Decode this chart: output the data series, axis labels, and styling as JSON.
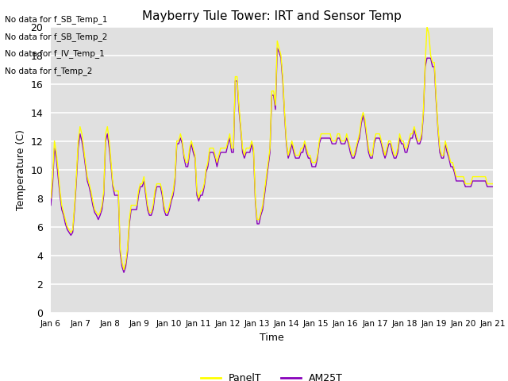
{
  "title": "Mayberry Tule Tower: IRT and Sensor Temp",
  "xlabel": "Time",
  "ylabel": "Temperature (C)",
  "ylim": [
    0,
    20
  ],
  "yticks": [
    0,
    2,
    4,
    6,
    8,
    10,
    12,
    14,
    16,
    18,
    20
  ],
  "panel_color": "#ffff00",
  "am25t_color": "#8800bb",
  "bg_color": "#e0e0e0",
  "legend_entries": [
    "PanelT",
    "AM25T"
  ],
  "no_data_messages": [
    "No data for f_SB_Temp_1",
    "No data for f_SB_Temp_2",
    "No data for f_IV_Temp_1",
    "No data for f_Temp_2"
  ],
  "x_tick_labels": [
    "Jan 6",
    "Jan 7",
    "Jan 8",
    "Jan 9",
    "Jan 10",
    "Jan 11",
    "Jan 12",
    "Jan 13",
    "Jan 14",
    "Jan 15",
    "Jan 16",
    "Jan 17",
    "Jan 18",
    "Jan 19",
    "Jan 20",
    "Jan 21"
  ],
  "panel_t": [
    8.0,
    9.5,
    12.0,
    11.2,
    10.0,
    8.5,
    7.5,
    7.0,
    6.5,
    6.0,
    5.8,
    5.6,
    5.8,
    7.5,
    9.5,
    12.0,
    13.0,
    12.5,
    11.5,
    10.5,
    9.5,
    9.0,
    8.5,
    7.8,
    7.2,
    7.0,
    6.8,
    7.0,
    7.5,
    8.5,
    12.5,
    13.0,
    12.0,
    10.5,
    9.0,
    8.5,
    8.5,
    8.5,
    4.5,
    3.5,
    3.0,
    3.5,
    4.5,
    6.5,
    7.5,
    7.5,
    7.5,
    7.5,
    8.5,
    9.0,
    9.0,
    9.5,
    8.5,
    7.5,
    7.0,
    7.0,
    7.5,
    8.5,
    9.0,
    9.0,
    9.0,
    8.5,
    7.5,
    7.0,
    7.0,
    7.5,
    8.0,
    8.5,
    9.5,
    12.0,
    12.0,
    12.5,
    12.0,
    11.0,
    10.5,
    10.5,
    11.5,
    12.0,
    11.5,
    11.0,
    8.5,
    8.0,
    8.5,
    8.5,
    9.0,
    10.0,
    10.5,
    11.5,
    11.5,
    11.5,
    11.0,
    10.5,
    11.0,
    11.5,
    11.5,
    11.5,
    11.5,
    12.0,
    12.5,
    11.5,
    11.5,
    16.5,
    16.5,
    14.5,
    13.0,
    11.5,
    11.0,
    11.5,
    11.5,
    11.5,
    12.0,
    11.5,
    8.0,
    6.5,
    6.5,
    7.0,
    7.5,
    8.5,
    9.5,
    10.5,
    11.5,
    15.5,
    15.5,
    14.5,
    19.0,
    18.5,
    18.0,
    16.5,
    14.0,
    12.0,
    11.0,
    11.5,
    12.0,
    11.5,
    11.0,
    11.0,
    11.0,
    11.5,
    11.5,
    12.0,
    11.5,
    11.0,
    11.0,
    10.5,
    10.5,
    10.5,
    11.0,
    12.0,
    12.5,
    12.5,
    12.5,
    12.5,
    12.5,
    12.5,
    12.0,
    12.0,
    12.0,
    12.5,
    12.5,
    12.0,
    12.0,
    12.0,
    12.5,
    12.0,
    11.5,
    11.0,
    11.0,
    11.5,
    12.0,
    12.5,
    13.5,
    14.0,
    13.5,
    12.5,
    11.5,
    11.0,
    11.0,
    12.0,
    12.5,
    12.5,
    12.5,
    12.0,
    11.5,
    11.0,
    11.5,
    12.0,
    12.0,
    11.5,
    11.0,
    11.0,
    11.5,
    12.5,
    12.0,
    12.0,
    11.5,
    11.5,
    12.0,
    12.5,
    12.5,
    13.0,
    12.5,
    12.0,
    12.0,
    12.5,
    14.0,
    17.5,
    20.0,
    19.5,
    18.0,
    17.5,
    17.5,
    15.0,
    13.0,
    11.5,
    11.0,
    11.0,
    12.0,
    11.5,
    11.0,
    10.5,
    10.5,
    10.0,
    9.5,
    9.5,
    9.5,
    9.5,
    9.5,
    9.0,
    9.0,
    9.0,
    9.0,
    9.5,
    9.5,
    9.5,
    9.5,
    9.5,
    9.5,
    9.5,
    9.5,
    9.0,
    9.0,
    9.0,
    9.0
  ],
  "am25t": [
    7.5,
    9.0,
    11.5,
    10.8,
    9.5,
    8.2,
    7.2,
    6.8,
    6.2,
    5.8,
    5.6,
    5.4,
    5.6,
    7.2,
    9.2,
    11.5,
    12.5,
    12.0,
    11.2,
    10.2,
    9.2,
    8.8,
    8.2,
    7.5,
    7.0,
    6.8,
    6.5,
    6.8,
    7.2,
    8.2,
    12.0,
    12.5,
    11.5,
    10.2,
    8.8,
    8.2,
    8.2,
    8.2,
    4.2,
    3.2,
    2.8,
    3.2,
    4.2,
    6.2,
    7.2,
    7.2,
    7.2,
    7.2,
    8.2,
    8.8,
    8.8,
    9.2,
    8.2,
    7.2,
    6.8,
    6.8,
    7.2,
    8.2,
    8.8,
    8.8,
    8.8,
    8.2,
    7.2,
    6.8,
    6.8,
    7.2,
    7.8,
    8.2,
    9.2,
    11.8,
    11.8,
    12.2,
    11.8,
    10.8,
    10.2,
    10.2,
    11.2,
    11.8,
    11.2,
    10.8,
    8.2,
    7.8,
    8.2,
    8.2,
    8.8,
    9.8,
    10.2,
    11.2,
    11.2,
    11.2,
    10.8,
    10.2,
    10.8,
    11.2,
    11.2,
    11.2,
    11.2,
    11.8,
    12.2,
    11.2,
    11.2,
    16.2,
    16.2,
    14.2,
    12.8,
    11.2,
    10.8,
    11.2,
    11.2,
    11.2,
    11.8,
    11.2,
    7.8,
    6.2,
    6.2,
    6.8,
    7.2,
    8.2,
    9.2,
    10.2,
    11.2,
    15.2,
    15.2,
    14.2,
    18.5,
    18.2,
    17.8,
    16.2,
    13.8,
    11.8,
    10.8,
    11.2,
    11.8,
    11.2,
    10.8,
    10.8,
    10.8,
    11.2,
    11.2,
    11.8,
    11.2,
    10.8,
    10.8,
    10.2,
    10.2,
    10.2,
    10.8,
    11.8,
    12.2,
    12.2,
    12.2,
    12.2,
    12.2,
    12.2,
    11.8,
    11.8,
    11.8,
    12.2,
    12.2,
    11.8,
    11.8,
    11.8,
    12.2,
    11.8,
    11.2,
    10.8,
    10.8,
    11.2,
    11.8,
    12.2,
    13.2,
    13.8,
    13.2,
    12.2,
    11.2,
    10.8,
    10.8,
    11.8,
    12.2,
    12.2,
    12.2,
    11.8,
    11.2,
    10.8,
    11.2,
    11.8,
    11.8,
    11.2,
    10.8,
    10.8,
    11.2,
    12.2,
    11.8,
    11.8,
    11.2,
    11.2,
    11.8,
    12.2,
    12.2,
    12.8,
    12.2,
    11.8,
    11.8,
    12.2,
    13.8,
    17.2,
    17.8,
    17.8,
    17.8,
    17.2,
    17.2,
    14.8,
    12.8,
    11.2,
    10.8,
    10.8,
    11.8,
    11.2,
    10.8,
    10.2,
    10.2,
    9.8,
    9.2,
    9.2,
    9.2,
    9.2,
    9.2,
    8.8,
    8.8,
    8.8,
    8.8,
    9.2,
    9.2,
    9.2,
    9.2,
    9.2,
    9.2,
    9.2,
    9.2,
    8.8,
    8.8,
    8.8,
    8.8
  ]
}
